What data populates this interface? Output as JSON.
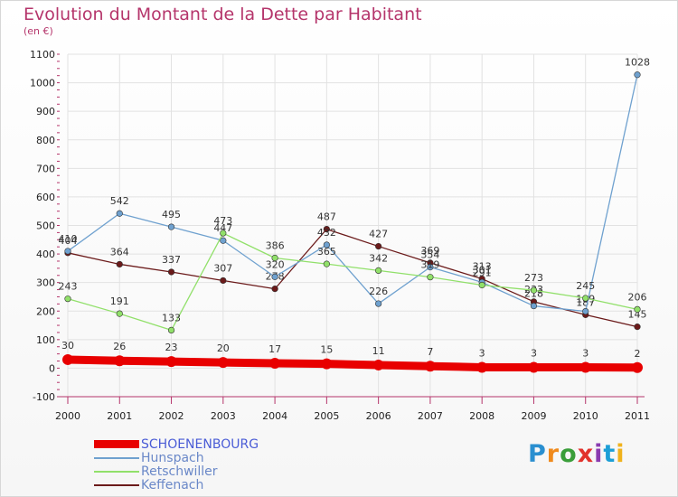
{
  "title": "Evolution du Montant de la Dette par Habitant",
  "subtitle": "(en €)",
  "logo": "Proxiti",
  "chart_data": {
    "type": "line",
    "x": [
      "2000",
      "2001",
      "2002",
      "2003",
      "2004",
      "2005",
      "2006",
      "2007",
      "2008",
      "2009",
      "2010",
      "2011"
    ],
    "ylim": [
      -100,
      1100
    ],
    "yticks": [
      -100,
      0,
      100,
      200,
      300,
      400,
      500,
      600,
      700,
      800,
      900,
      1000,
      1100
    ],
    "grid": true,
    "legend_position": "bottom-left",
    "series": [
      {
        "name": "SCHOENENBOURG",
        "color": "#e80000",
        "values": [
          30,
          26,
          23,
          20,
          17,
          15,
          11,
          7,
          3,
          3,
          3,
          2
        ]
      },
      {
        "name": "Hunspach",
        "color": "#6fa1cf",
        "values": [
          410,
          542,
          495,
          447,
          320,
          432,
          226,
          354,
          301,
          218,
          199,
          1028
        ]
      },
      {
        "name": "Retschwiller",
        "color": "#91e06a",
        "values": [
          243,
          191,
          133,
          473,
          386,
          365,
          342,
          319,
          291,
          273,
          245,
          206
        ]
      },
      {
        "name": "Keffenach",
        "color": "#6b1a1a",
        "values": [
          404,
          364,
          337,
          307,
          278,
          487,
          427,
          369,
          313,
          233,
          187,
          145
        ]
      }
    ]
  }
}
